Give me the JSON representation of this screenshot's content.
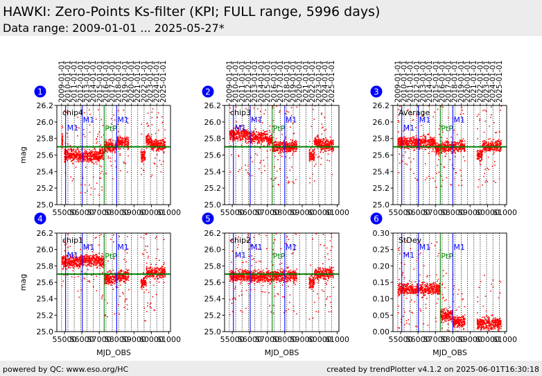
{
  "header": {
    "title": "HAWKI: Zero-Points Ks-filter (KPI; FULL range, 5996 days)",
    "subtitle": "Data range: 2009-01-01 ... 2025-05-27*"
  },
  "footer": {
    "left": "powered by QC: www.eso.org/HC",
    "right": "created by trendPlotter v4.1.2 on 2025-06-01T16:30:18"
  },
  "colors": {
    "points": "#ff0000",
    "reference": "#008000",
    "m1": "#0000ff",
    "ptp": "#008000",
    "badge": "#0000ff"
  },
  "chart_data": {
    "type": "scatter",
    "xlabel": "MJD_OBS",
    "xlim": [
      54560,
      61100
    ],
    "xticks": [
      55000,
      56000,
      57000,
      58000,
      59000,
      60000,
      61000
    ],
    "date_ticks": {
      "labels": [
        "2009-01-01",
        "2010-01-01",
        "2011-01-01",
        "2012-01-01",
        "2013-01-01",
        "2014-01-01",
        "2015-01-01",
        "2016-01-01",
        "2017-01-01",
        "2018-01-01",
        "2019-01-01",
        "2020-01-01",
        "2021-01-01",
        "2022-01-01",
        "2023-01-01",
        "2024-01-01",
        "2025-01-01"
      ],
      "mjd": [
        54832,
        55197,
        55562,
        55927,
        56293,
        56658,
        57023,
        57388,
        57754,
        58119,
        58484,
        58849,
        59215,
        59580,
        59945,
        60310,
        60676
      ]
    },
    "events": [
      {
        "label": "M1",
        "mjd": 55065,
        "color": "#0000ff"
      },
      {
        "label": "M1",
        "mjd": 56026,
        "color": "#0000ff"
      },
      {
        "label": "PtP",
        "mjd": 57283,
        "color": "#008000"
      },
      {
        "label": "M1",
        "mjd": 58004,
        "color": "#0000ff"
      }
    ],
    "panels": [
      {
        "number": "1",
        "name": "chip4",
        "ylabel": "mag",
        "ylim": [
          25.0,
          26.2
        ],
        "yticks": [
          "25.0",
          "25.2",
          "25.4",
          "25.6",
          "25.8",
          "26.0",
          "26.2"
        ],
        "reference": 25.7,
        "segments": [
          {
            "mjd": [
              54850,
              54900
            ],
            "level": 25.78
          },
          {
            "mjd": [
              55000,
              55900
            ],
            "level": 25.6
          },
          {
            "mjd": [
              55900,
              57000
            ],
            "level": 25.58
          },
          {
            "mjd": [
              57000,
              57300
            ],
            "level": 25.62
          },
          {
            "mjd": [
              57300,
              58000
            ],
            "level": 25.7
          },
          {
            "mjd": [
              58000,
              58700
            ],
            "level": 25.75
          },
          {
            "mjd": [
              59400,
              59650
            ],
            "level": 25.6
          },
          {
            "mjd": [
              59700,
              60000
            ],
            "level": 25.77
          },
          {
            "mjd": [
              60000,
              60800
            ],
            "level": 25.72
          }
        ]
      },
      {
        "number": "2",
        "name": "chip3",
        "ylabel": "",
        "ylim": [
          25.0,
          26.2
        ],
        "yticks": [
          "25.0",
          "25.2",
          "25.4",
          "25.6",
          "25.8",
          "26.0",
          "26.2"
        ],
        "reference": 25.7,
        "segments": [
          {
            "mjd": [
              54850,
              55900
            ],
            "level": 25.85
          },
          {
            "mjd": [
              55900,
              57000
            ],
            "level": 25.82
          },
          {
            "mjd": [
              57000,
              57300
            ],
            "level": 25.78
          },
          {
            "mjd": [
              57300,
              58100
            ],
            "level": 25.7
          },
          {
            "mjd": [
              58100,
              58700
            ],
            "level": 25.7
          },
          {
            "mjd": [
              59400,
              59700
            ],
            "level": 25.6
          },
          {
            "mjd": [
              59700,
              60000
            ],
            "level": 25.76
          },
          {
            "mjd": [
              60000,
              60800
            ],
            "level": 25.72
          }
        ]
      },
      {
        "number": "3",
        "name": "Average",
        "ylabel": "",
        "ylim": [
          25.0,
          26.2
        ],
        "yticks": [
          "25.0",
          "25.2",
          "25.4",
          "25.6",
          "25.8",
          "26.0",
          "26.2"
        ],
        "reference": 25.7,
        "segments": [
          {
            "mjd": [
              54850,
              55900
            ],
            "level": 25.75
          },
          {
            "mjd": [
              55900,
              57000
            ],
            "level": 25.75
          },
          {
            "mjd": [
              57000,
              57300
            ],
            "level": 25.68
          },
          {
            "mjd": [
              57300,
              58700
            ],
            "level": 25.7
          },
          {
            "mjd": [
              59400,
              59700
            ],
            "level": 25.6
          },
          {
            "mjd": [
              59700,
              60800
            ],
            "level": 25.71
          }
        ]
      },
      {
        "number": "4",
        "name": "chip1",
        "ylabel": "mag",
        "ylim": [
          25.0,
          26.2
        ],
        "yticks": [
          "25.0",
          "25.2",
          "25.4",
          "25.6",
          "25.8",
          "26.0",
          "26.2"
        ],
        "reference": 25.7,
        "segments": [
          {
            "mjd": [
              54850,
              55900
            ],
            "level": 25.85
          },
          {
            "mjd": [
              55900,
              57000
            ],
            "level": 25.87
          },
          {
            "mjd": [
              57000,
              57300
            ],
            "level": 25.85
          },
          {
            "mjd": [
              57300,
              58100
            ],
            "level": 25.65
          },
          {
            "mjd": [
              58100,
              58700
            ],
            "level": 25.68
          },
          {
            "mjd": [
              59400,
              59700
            ],
            "level": 25.6
          },
          {
            "mjd": [
              59700,
              60800
            ],
            "level": 25.72
          }
        ]
      },
      {
        "number": "5",
        "name": "chip2",
        "ylabel": "",
        "ylim": [
          25.0,
          26.2
        ],
        "yticks": [
          "25.0",
          "25.2",
          "25.4",
          "25.6",
          "25.8",
          "26.0",
          "26.2"
        ],
        "reference": 25.7,
        "segments": [
          {
            "mjd": [
              54850,
              55900
            ],
            "level": 25.68
          },
          {
            "mjd": [
              55900,
              57300
            ],
            "level": 25.67
          },
          {
            "mjd": [
              57300,
              58700
            ],
            "level": 25.68
          },
          {
            "mjd": [
              59400,
              59700
            ],
            "level": 25.6
          },
          {
            "mjd": [
              59700,
              60800
            ],
            "level": 25.71
          }
        ]
      },
      {
        "number": "6",
        "name": "StDev",
        "ylabel": "",
        "ylim": [
          0.0,
          0.3
        ],
        "yticks": [
          "0.00",
          "0.05",
          "0.10",
          "0.15",
          "0.20",
          "0.25",
          "0.30"
        ],
        "reference": null,
        "segments": [
          {
            "mjd": [
              54850,
              57300
            ],
            "level": 0.13
          },
          {
            "mjd": [
              57300,
              58000
            ],
            "level": 0.05
          },
          {
            "mjd": [
              58000,
              58700
            ],
            "level": 0.03
          },
          {
            "mjd": [
              59400,
              60800
            ],
            "level": 0.025
          }
        ]
      }
    ]
  }
}
